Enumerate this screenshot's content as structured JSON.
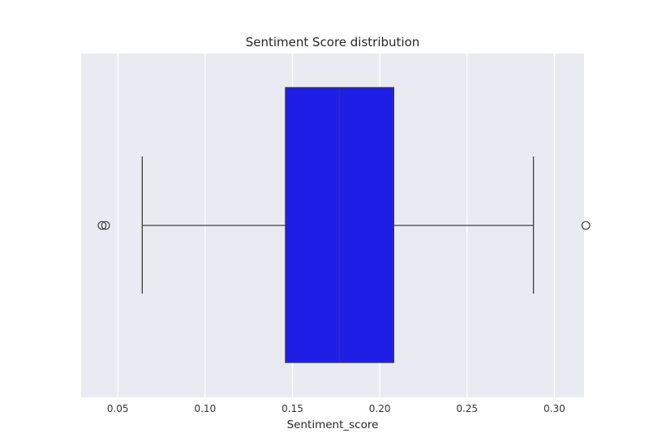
{
  "chart_data": {
    "type": "box",
    "title": "Sentiment Score distribution",
    "xlabel": "Sentiment_score",
    "ylabel": "",
    "orientation": "horizontal",
    "xlim": [
      0.029,
      0.317
    ],
    "xticks": [
      0.05,
      0.1,
      0.15,
      0.2,
      0.25,
      0.3
    ],
    "xtick_labels": [
      "0.05",
      "0.10",
      "0.15",
      "0.20",
      "0.25",
      "0.30"
    ],
    "grid": true,
    "style": "seaborn-darkgrid",
    "box": {
      "whisker_low": 0.064,
      "q1": 0.146,
      "median": 0.177,
      "q3": 0.208,
      "whisker_high": 0.288,
      "outliers": [
        0.041,
        0.043,
        0.318
      ]
    },
    "colors": {
      "box_fill": "#1f1ee6",
      "line": "#3d3d3d",
      "background": "#eaeaf2",
      "grid": "#ffffff"
    }
  }
}
